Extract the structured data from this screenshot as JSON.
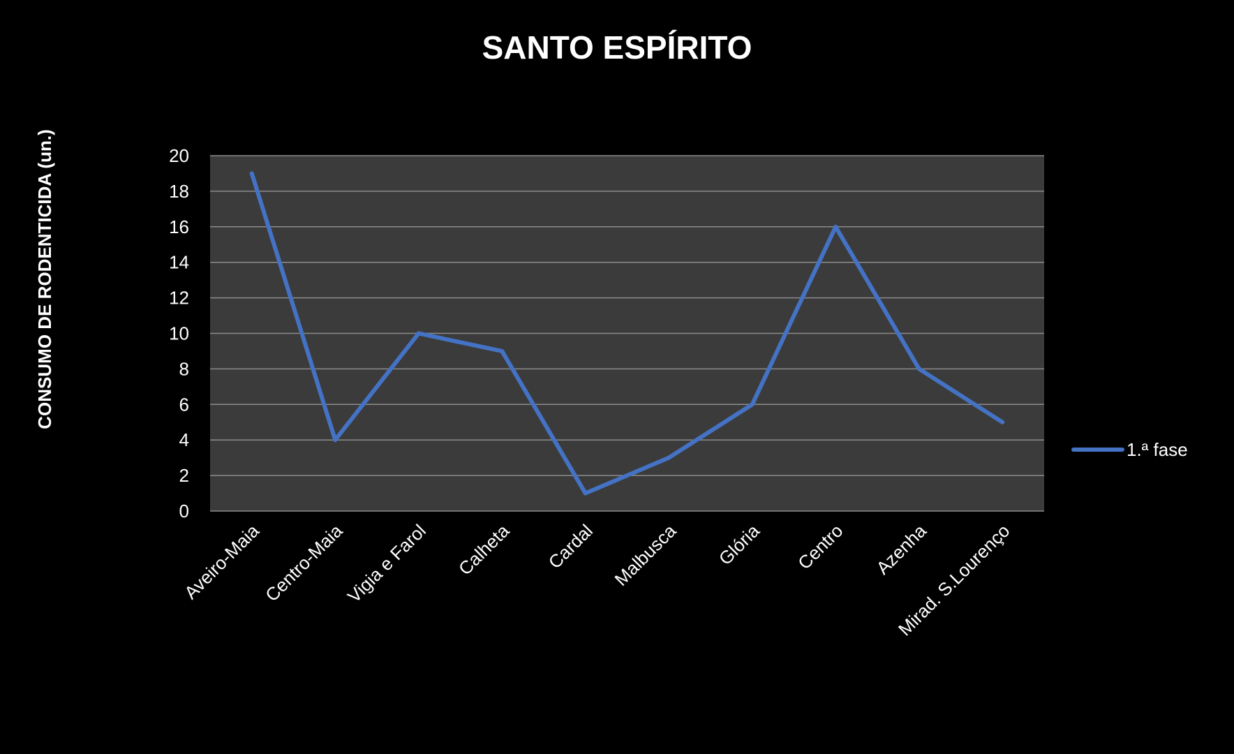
{
  "chart_data": {
    "type": "line",
    "title": "SANTO ESPÍRITO",
    "xlabel": "",
    "ylabel": "CONSUMO DE RODENTICIDA (un.)",
    "categories": [
      "Aveiro-Maia",
      "Centro-Maia",
      "Vigia e Farol",
      "Calheta",
      "Cardal",
      "Malbusca",
      "Glória",
      "Centro",
      "Azenha",
      "Mirad. S.Lourenço"
    ],
    "series": [
      {
        "name": "1.ª fase",
        "color": "#4472C4",
        "values": [
          19,
          4,
          10,
          9,
          1,
          3,
          6,
          16,
          8,
          5
        ]
      }
    ],
    "ylim": [
      0,
      20
    ],
    "yticks": [
      0,
      2,
      4,
      6,
      8,
      10,
      12,
      14,
      16,
      18,
      20
    ],
    "grid": true,
    "legend_position": "right",
    "colors": {
      "background": "#000000",
      "plot_area": "#3b3b3b",
      "grid": "#8c8c8c",
      "text": "#ffffff"
    }
  }
}
